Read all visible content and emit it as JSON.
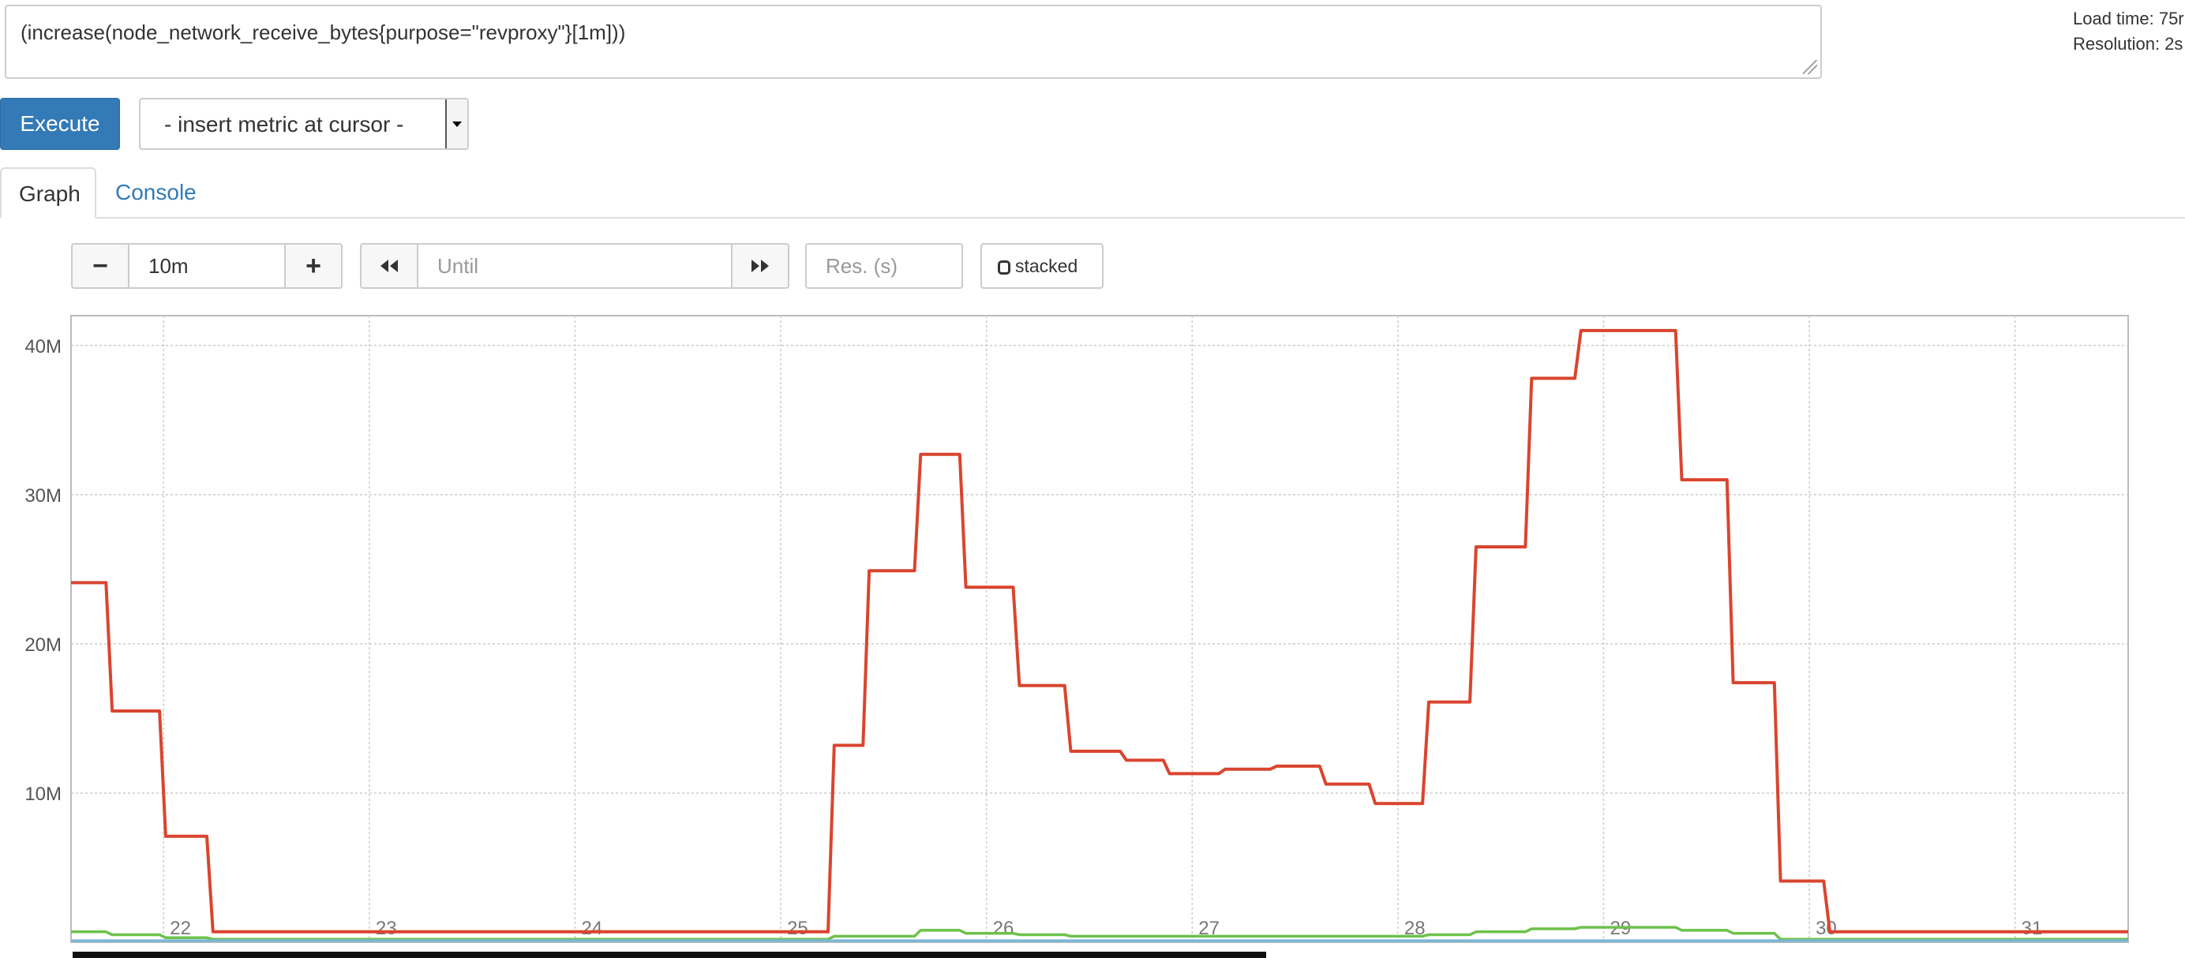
{
  "query": {
    "expression": "(increase(node_network_receive_bytes{purpose=\"revproxy\"}[1m]))",
    "load_time_label": "Load time: 75r",
    "resolution_label": "Resolution: 2s"
  },
  "toolbar": {
    "execute_label": "Execute",
    "metric_select_value": "- insert metric at cursor -"
  },
  "tabs": [
    {
      "label": "Graph",
      "active": true
    },
    {
      "label": "Console",
      "active": false
    }
  ],
  "graph_controls": {
    "range_minus": "−",
    "range_value": "10m",
    "range_plus": "+",
    "back_icon": "rewind-icon",
    "until_placeholder": "Until",
    "forward_icon": "fast-forward-icon",
    "resolution_placeholder": "Res. (s)",
    "stacked_label": "stacked"
  },
  "colors": {
    "accent": "#337ab7",
    "series_red": "#d9452f",
    "series_green": "#6cc24a",
    "series_blue": "#7ab6d6"
  },
  "chart_data": {
    "type": "line",
    "ylim": [
      0,
      42000000
    ],
    "xlim": [
      21.55,
      31.55
    ],
    "grid": true,
    "y_ticks": [
      {
        "value": 10000000,
        "label": "10M"
      },
      {
        "value": 20000000,
        "label": "20M"
      },
      {
        "value": 30000000,
        "label": "30M"
      },
      {
        "value": 40000000,
        "label": "40M"
      }
    ],
    "x_ticks": [
      {
        "value": 22,
        "label": "22"
      },
      {
        "value": 23,
        "label": "23"
      },
      {
        "value": 24,
        "label": "24"
      },
      {
        "value": 25,
        "label": "25"
      },
      {
        "value": 26,
        "label": "26"
      },
      {
        "value": 27,
        "label": "27"
      },
      {
        "value": 28,
        "label": "28"
      },
      {
        "value": 29,
        "label": "29"
      },
      {
        "value": 30,
        "label": "30"
      },
      {
        "value": 31,
        "label": "31"
      }
    ],
    "series": [
      {
        "color": "#d9452f",
        "points": [
          [
            21.55,
            24100000
          ],
          [
            21.72,
            24100000
          ],
          [
            21.75,
            15500000
          ],
          [
            21.98,
            15500000
          ],
          [
            22.01,
            7100000
          ],
          [
            22.21,
            7100000
          ],
          [
            22.24,
            700000
          ],
          [
            25.0,
            700000
          ],
          [
            25.23,
            700000
          ],
          [
            25.26,
            13200000
          ],
          [
            25.4,
            13200000
          ],
          [
            25.43,
            24900000
          ],
          [
            25.65,
            24900000
          ],
          [
            25.68,
            32700000
          ],
          [
            25.87,
            32700000
          ],
          [
            25.9,
            23800000
          ],
          [
            26.13,
            23800000
          ],
          [
            26.16,
            17200000
          ],
          [
            26.38,
            17200000
          ],
          [
            26.41,
            12800000
          ],
          [
            26.65,
            12800000
          ],
          [
            26.68,
            12200000
          ],
          [
            26.86,
            12200000
          ],
          [
            26.89,
            11300000
          ],
          [
            27.13,
            11300000
          ],
          [
            27.16,
            11600000
          ],
          [
            27.38,
            11600000
          ],
          [
            27.41,
            11800000
          ],
          [
            27.62,
            11800000
          ],
          [
            27.65,
            10600000
          ],
          [
            27.86,
            10600000
          ],
          [
            27.89,
            9300000
          ],
          [
            28.12,
            9300000
          ],
          [
            28.15,
            16100000
          ],
          [
            28.35,
            16100000
          ],
          [
            28.38,
            26500000
          ],
          [
            28.62,
            26500000
          ],
          [
            28.65,
            37800000
          ],
          [
            28.86,
            37800000
          ],
          [
            28.89,
            41000000
          ],
          [
            29.35,
            41000000
          ],
          [
            29.38,
            31000000
          ],
          [
            29.6,
            31000000
          ],
          [
            29.63,
            17400000
          ],
          [
            29.83,
            17400000
          ],
          [
            29.86,
            4100000
          ],
          [
            30.07,
            4100000
          ],
          [
            30.1,
            700000
          ],
          [
            31.55,
            700000
          ]
        ]
      },
      {
        "color": "#6cc24a",
        "points": [
          [
            21.55,
            700000
          ],
          [
            21.72,
            700000
          ],
          [
            21.75,
            500000
          ],
          [
            21.98,
            500000
          ],
          [
            22.01,
            300000
          ],
          [
            22.21,
            300000
          ],
          [
            22.24,
            200000
          ],
          [
            25.23,
            200000
          ],
          [
            25.26,
            400000
          ],
          [
            25.65,
            400000
          ],
          [
            25.68,
            800000
          ],
          [
            25.87,
            800000
          ],
          [
            25.9,
            600000
          ],
          [
            26.13,
            600000
          ],
          [
            26.16,
            500000
          ],
          [
            26.38,
            500000
          ],
          [
            26.41,
            400000
          ],
          [
            28.12,
            400000
          ],
          [
            28.15,
            500000
          ],
          [
            28.35,
            500000
          ],
          [
            28.38,
            700000
          ],
          [
            28.62,
            700000
          ],
          [
            28.65,
            900000
          ],
          [
            28.86,
            900000
          ],
          [
            28.89,
            1000000
          ],
          [
            29.35,
            1000000
          ],
          [
            29.38,
            800000
          ],
          [
            29.6,
            800000
          ],
          [
            29.63,
            600000
          ],
          [
            29.83,
            600000
          ],
          [
            29.86,
            200000
          ],
          [
            31.55,
            200000
          ]
        ]
      },
      {
        "color": "#7ab6d6",
        "points": [
          [
            21.55,
            100000
          ],
          [
            31.55,
            100000
          ]
        ]
      }
    ]
  }
}
